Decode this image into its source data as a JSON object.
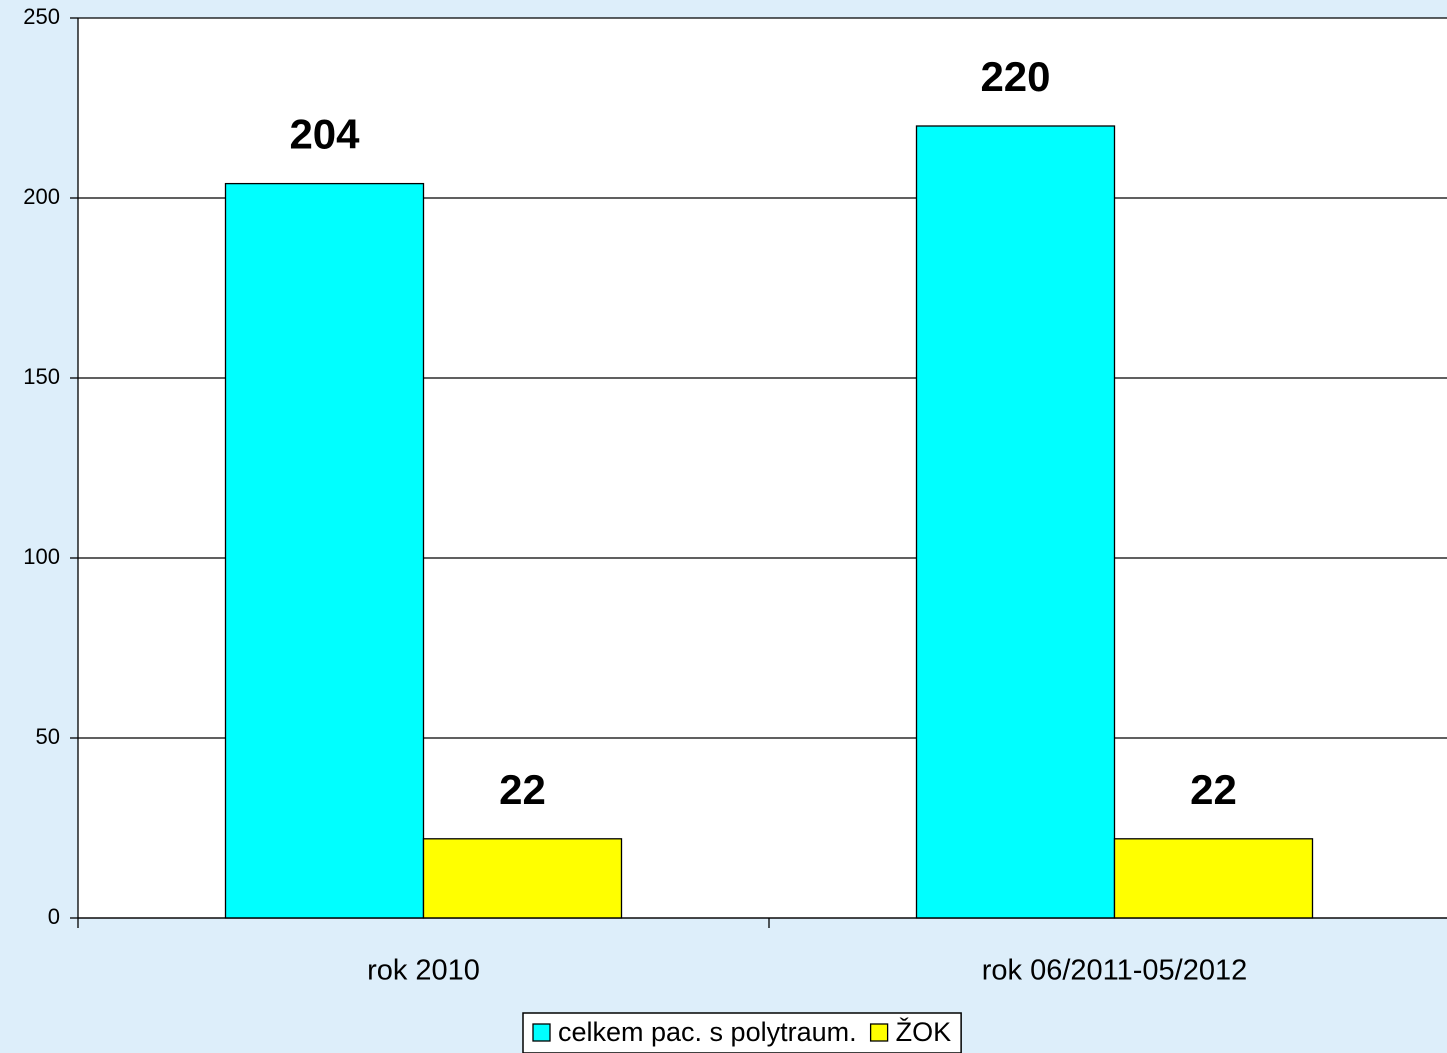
{
  "chart_data": {
    "type": "bar",
    "categories": [
      "rok 2010",
      "rok 06/2011-05/2012"
    ],
    "series": [
      {
        "name": "celkem pac. s polytraum.",
        "color": "#00ffff",
        "values": [
          204,
          220
        ]
      },
      {
        "name": "ŽOK",
        "color": "#ffff00",
        "values": [
          22,
          22
        ]
      }
    ],
    "ylim": [
      0,
      250
    ],
    "yticks": [
      0,
      50,
      100,
      150,
      200,
      250
    ],
    "grid": true,
    "legend": "bottom"
  }
}
